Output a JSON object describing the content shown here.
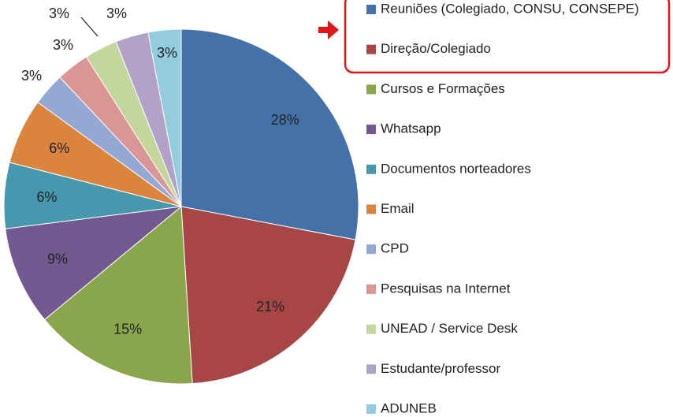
{
  "chart_data": {
    "type": "pie",
    "categories": [
      "Reuniões (Colegiado, CONSU, CONSEPE)",
      "Direção/Colegiado",
      "Cursos e Formações",
      "Whatsapp",
      "Documentos norteadores",
      "Email",
      "CPD",
      "Pesquisas na Internet",
      "UNEAD / Service Desk",
      "Estudante/professor",
      "ADUNEB"
    ],
    "values": [
      28,
      21,
      15,
      9,
      6,
      6,
      3,
      3,
      3,
      3,
      3
    ],
    "value_labels": [
      "28%",
      "21%",
      "15%",
      "9%",
      "6%",
      "6%",
      "3%",
      "3%",
      "3%",
      "3%",
      "3%"
    ],
    "colors": [
      "#4472a8",
      "#a84545",
      "#8aa64d",
      "#72598f",
      "#4698ae",
      "#db843d",
      "#93a9d4",
      "#d99694",
      "#c3d69b",
      "#b3a2c7",
      "#93cddd"
    ],
    "legend": "right"
  }
}
